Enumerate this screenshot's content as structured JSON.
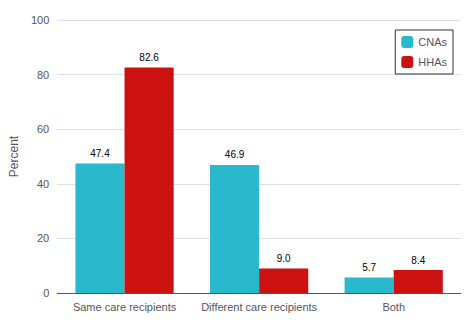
{
  "chart_data": {
    "type": "bar",
    "categories": [
      "Same care recipients",
      "Different care recipients",
      "Both"
    ],
    "series": [
      {
        "name": "CNAs",
        "color": "#29b8cc",
        "values": [
          47.4,
          46.9,
          5.7
        ]
      },
      {
        "name": "HHAs",
        "color": "#cc1111",
        "values": [
          82.6,
          9.0,
          8.4
        ],
        "value_labels": [
          "82.6",
          "9.0",
          "8.4"
        ]
      }
    ],
    "ylabel": "Percent",
    "ylim": [
      0,
      100
    ],
    "yticks": [
      0,
      20,
      40,
      60,
      80,
      100
    ],
    "grid": true,
    "legend": "upper right",
    "data_labels": true
  }
}
